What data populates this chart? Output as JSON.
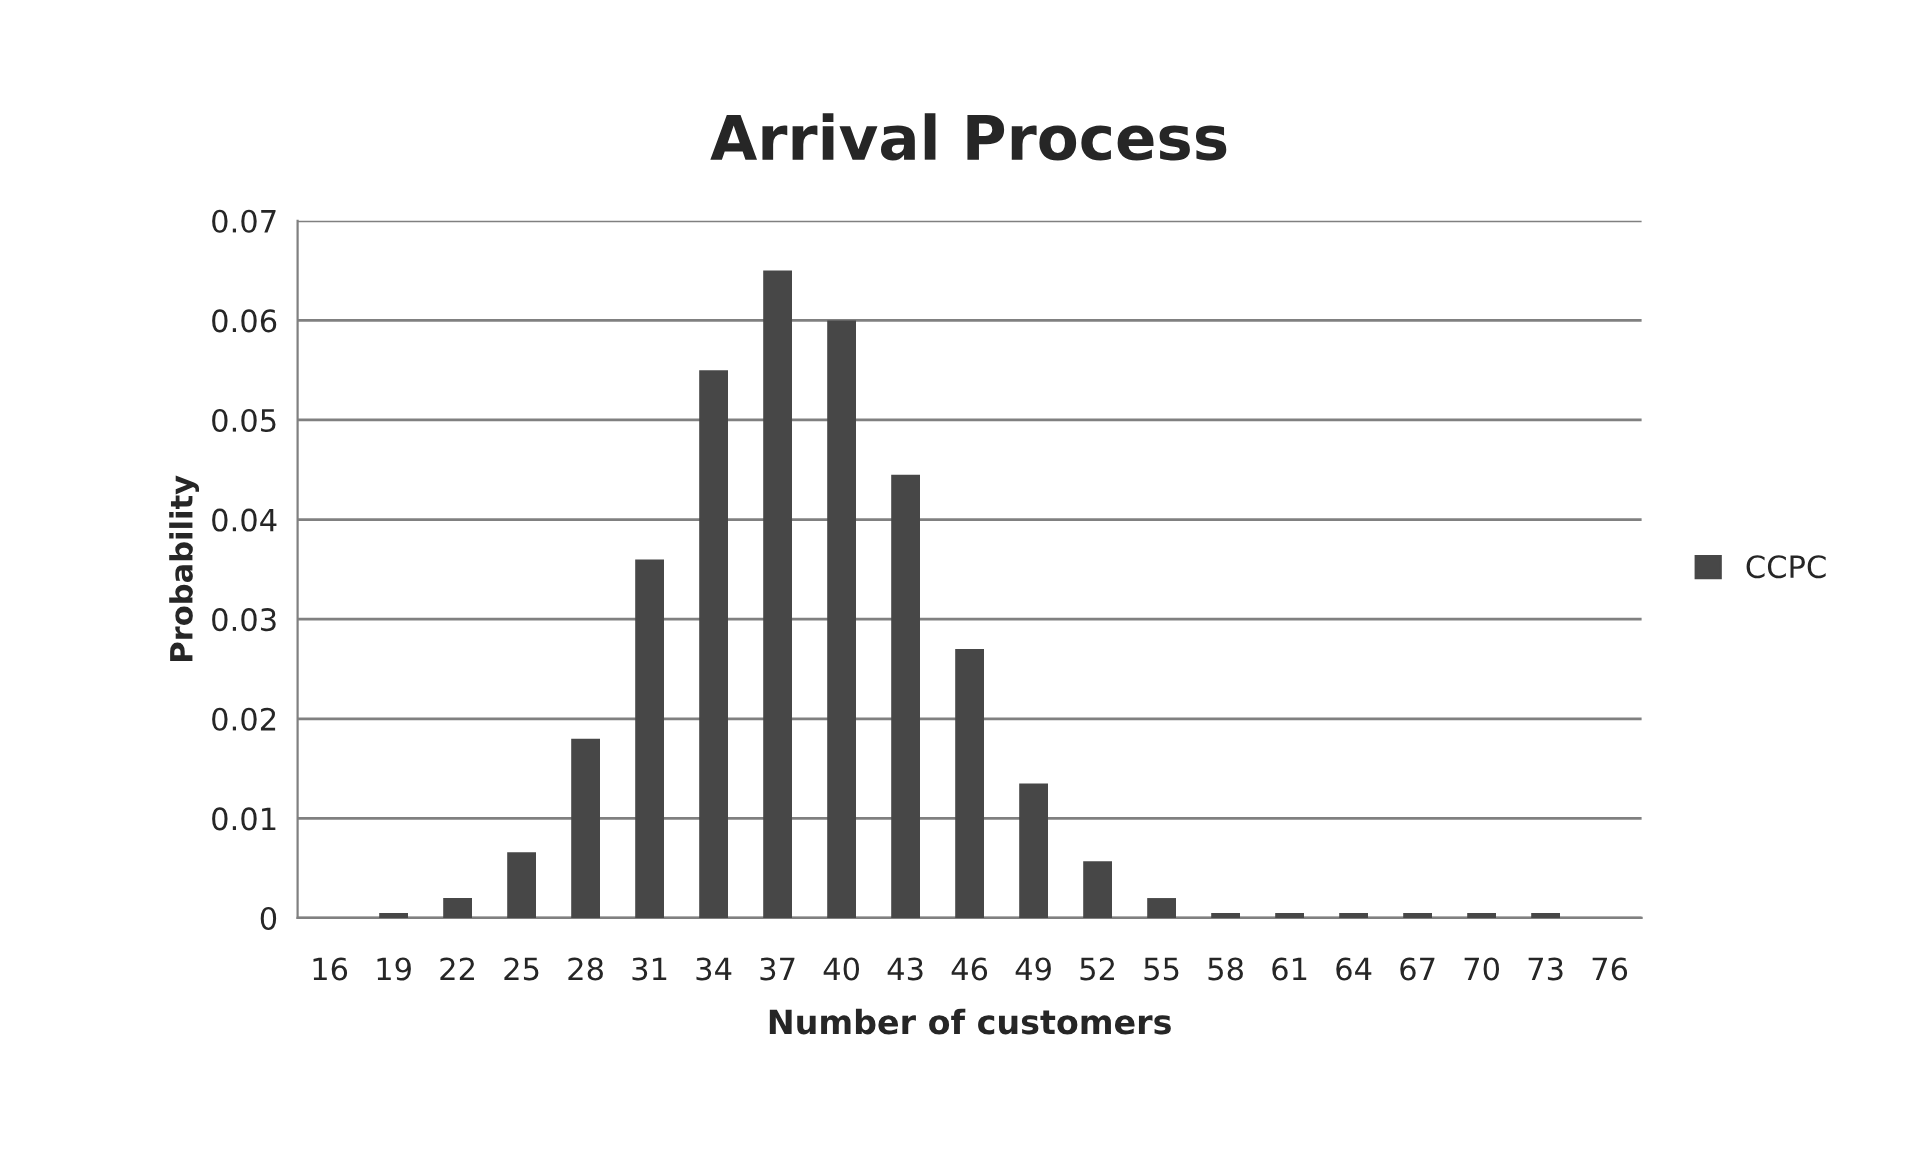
{
  "chart_data": {
    "type": "bar",
    "title": "Arrival Process",
    "xlabel": "Number of customers",
    "ylabel": "Probability",
    "categories": [
      "16",
      "19",
      "22",
      "25",
      "28",
      "31",
      "34",
      "37",
      "40",
      "43",
      "46",
      "49",
      "52",
      "55",
      "58",
      "61",
      "64",
      "67",
      "70",
      "73",
      "76"
    ],
    "series": [
      {
        "name": "CCPC",
        "color": "#474747",
        "values": [
          null,
          0.0005,
          0.002,
          0.0066,
          0.018,
          0.036,
          0.055,
          0.065,
          0.06,
          0.0445,
          0.027,
          0.0135,
          0.0057,
          0.002,
          0.0005,
          0.0005,
          0.0005,
          0.0005,
          0.0005,
          0.0005,
          null
        ]
      }
    ],
    "ylim": [
      0,
      0.07
    ],
    "yticks": [
      {
        "value": 0,
        "label": "0"
      },
      0.01,
      0.02,
      0.03,
      0.04,
      0.05,
      0.06,
      0.07
    ],
    "grid": "y",
    "legend": "right"
  }
}
